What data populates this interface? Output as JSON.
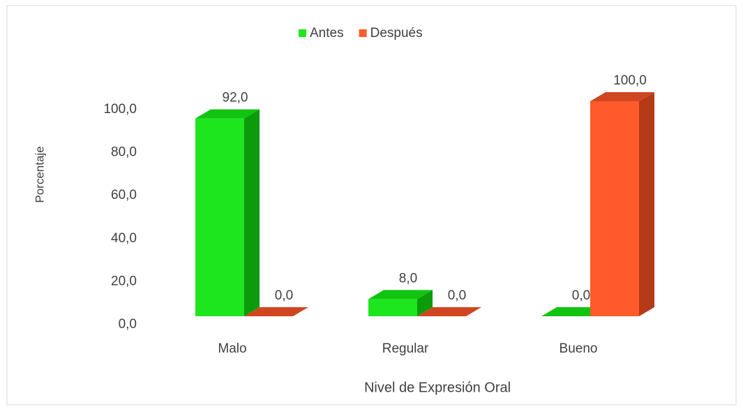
{
  "chart_data": {
    "type": "bar3d",
    "x_label": "Nivel de Expresión Oral",
    "y_label": "Porcentaje",
    "categories": [
      "Malo",
      "Regular",
      "Bueno"
    ],
    "series": [
      {
        "name": "Antes",
        "color": "#1ee61e",
        "side_color": "#0b9b0b",
        "top_color": "#12c412",
        "values": [
          92,
          8,
          0
        ],
        "value_labels": [
          "92,0",
          "8,0",
          "0,0"
        ]
      },
      {
        "name": "Después",
        "color": "#ff5a2b",
        "side_color": "#b53a17",
        "top_color": "#cf4621",
        "values": [
          0,
          0,
          100
        ],
        "value_labels": [
          "0,0",
          "0,0",
          "100,0"
        ]
      }
    ],
    "ylim": [
      0,
      100
    ],
    "yticks": [
      {
        "value": 0,
        "label": "0,0"
      },
      {
        "value": 20,
        "label": "20,0"
      },
      {
        "value": 40,
        "label": "40,0"
      },
      {
        "value": 60,
        "label": "60,0"
      },
      {
        "value": 80,
        "label": "80,0"
      },
      {
        "value": 100,
        "label": "100,0"
      }
    ],
    "legend": "top"
  }
}
